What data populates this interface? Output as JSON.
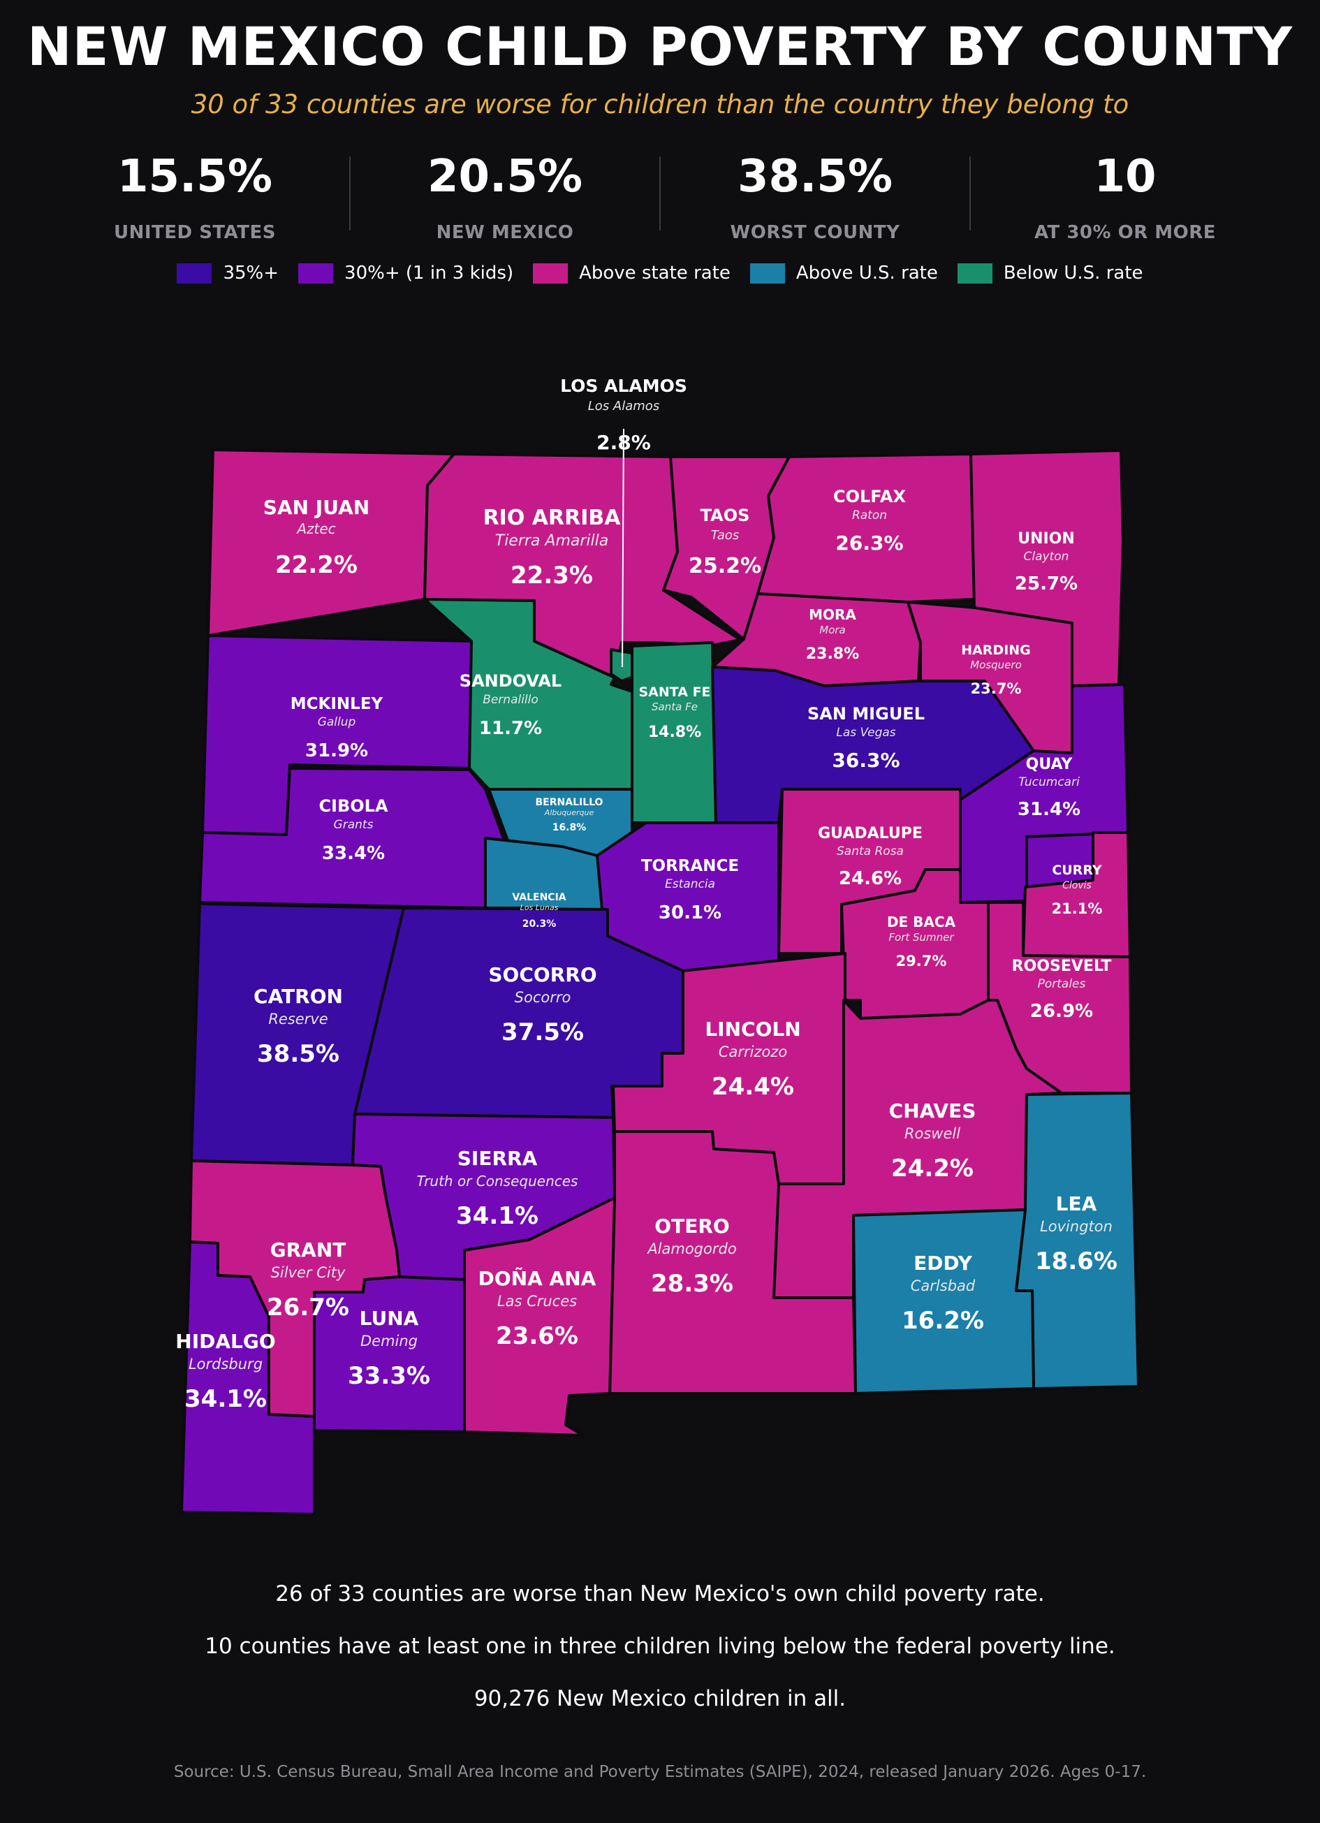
{
  "title": "NEW MEXICO CHILD POVERTY BY COUNTY",
  "subtitle": "30 of 33 counties are worse for children than the country they belong to",
  "stats": [
    {
      "value": "15.5%",
      "label": "UNITED STATES"
    },
    {
      "value": "20.5%",
      "label": "NEW MEXICO"
    },
    {
      "value": "38.5%",
      "label": "WORST COUNTY"
    },
    {
      "value": "10",
      "label": "AT 30% OR MORE"
    }
  ],
  "legend": [
    {
      "label": "35%+",
      "color": "#3a0ca3"
    },
    {
      "label": "30%+ (1 in 3 kids)",
      "color": "#7209b7"
    },
    {
      "label": "Above state rate",
      "color": "#c51b8a"
    },
    {
      "label": "Above U.S. rate",
      "color": "#1b7fa8"
    },
    {
      "label": "Below U.S. rate",
      "color": "#1a8f6c"
    }
  ],
  "counties": [
    {
      "name": "SAN JUAN",
      "seat": "Aztec",
      "rate": "22.2%",
      "category": "Above state rate"
    },
    {
      "name": "RIO ARRIBA",
      "seat": "Tierra Amarilla",
      "rate": "22.3%",
      "category": "Above state rate"
    },
    {
      "name": "TAOS",
      "seat": "Taos",
      "rate": "25.2%",
      "category": "Above state rate"
    },
    {
      "name": "COLFAX",
      "seat": "Raton",
      "rate": "26.3%",
      "category": "Above state rate"
    },
    {
      "name": "UNION",
      "seat": "Clayton",
      "rate": "25.7%",
      "category": "Above state rate"
    },
    {
      "name": "MORA",
      "seat": "Mora",
      "rate": "23.8%",
      "category": "Above state rate"
    },
    {
      "name": "HARDING",
      "seat": "Mosquero",
      "rate": "23.7%",
      "category": "Above state rate"
    },
    {
      "name": "LOS ALAMOS",
      "seat": "Los Alamos",
      "rate": "2.8%",
      "category": "Below U.S. rate"
    },
    {
      "name": "SANDOVAL",
      "seat": "Bernalillo",
      "rate": "11.7%",
      "category": "Below U.S. rate"
    },
    {
      "name": "SANTA FE",
      "seat": "Santa Fe",
      "rate": "14.8%",
      "category": "Below U.S. rate"
    },
    {
      "name": "MCKINLEY",
      "seat": "Gallup",
      "rate": "31.9%",
      "category": "30%+ (1 in 3 kids)"
    },
    {
      "name": "SAN MIGUEL",
      "seat": "Las Vegas",
      "rate": "36.3%",
      "category": "35%+"
    },
    {
      "name": "QUAY",
      "seat": "Tucumcari",
      "rate": "31.4%",
      "category": "30%+ (1 in 3 kids)"
    },
    {
      "name": "CIBOLA",
      "seat": "Grants",
      "rate": "33.4%",
      "category": "30%+ (1 in 3 kids)"
    },
    {
      "name": "BERNALILLO",
      "seat": "Albuquerque",
      "rate": "16.8%",
      "category": "Above U.S. rate"
    },
    {
      "name": "GUADALUPE",
      "seat": "Santa Rosa",
      "rate": "24.6%",
      "category": "Above state rate"
    },
    {
      "name": "TORRANCE",
      "seat": "Estancia",
      "rate": "30.1%",
      "category": "30%+ (1 in 3 kids)"
    },
    {
      "name": "VALENCIA",
      "seat": "Los Lunas",
      "rate": "20.3%",
      "category": "Above U.S. rate"
    },
    {
      "name": "CURRY",
      "seat": "Clovis",
      "rate": "21.1%",
      "category": "Above state rate"
    },
    {
      "name": "DE BACA",
      "seat": "Fort Sumner",
      "rate": "29.7%",
      "category": "Above state rate"
    },
    {
      "name": "ROOSEVELT",
      "seat": "Portales",
      "rate": "26.9%",
      "category": "Above state rate"
    },
    {
      "name": "CATRON",
      "seat": "Reserve",
      "rate": "38.5%",
      "category": "35%+"
    },
    {
      "name": "SOCORRO",
      "seat": "Socorro",
      "rate": "37.5%",
      "category": "35%+"
    },
    {
      "name": "LINCOLN",
      "seat": "Carrizozo",
      "rate": "24.4%",
      "category": "Above state rate"
    },
    {
      "name": "CHAVES",
      "seat": "Roswell",
      "rate": "24.2%",
      "category": "Above state rate"
    },
    {
      "name": "SIERRA",
      "seat": "Truth or Consequences",
      "rate": "34.1%",
      "category": "30%+ (1 in 3 kids)"
    },
    {
      "name": "LEA",
      "seat": "Lovington",
      "rate": "18.6%",
      "category": "Above U.S. rate"
    },
    {
      "name": "GRANT",
      "seat": "Silver City",
      "rate": "26.7%",
      "category": "Above state rate"
    },
    {
      "name": "OTERO",
      "seat": "Alamogordo",
      "rate": "28.3%",
      "category": "Above state rate"
    },
    {
      "name": "EDDY",
      "seat": "Carlsbad",
      "rate": "16.2%",
      "category": "Above U.S. rate"
    },
    {
      "name": "DOÑA ANA",
      "seat": "Las Cruces",
      "rate": "23.6%",
      "category": "Above state rate"
    },
    {
      "name": "LUNA",
      "seat": "Deming",
      "rate": "33.3%",
      "category": "30%+ (1 in 3 kids)"
    },
    {
      "name": "HIDALGO",
      "seat": "Lordsburg",
      "rate": "34.1%",
      "category": "30%+ (1 in 3 kids)"
    }
  ],
  "footer": {
    "line1": "26 of 33 counties are worse than New Mexico's own child poverty rate.",
    "line2": "10 counties have at least one in three children living below the federal poverty line.",
    "line3": "90,276 New Mexico children in all.",
    "source": "Source: U.S. Census Bureau, Small Area Income and Poverty Estimates (SAIPE), 2024, released January 2026. Ages 0-17."
  }
}
